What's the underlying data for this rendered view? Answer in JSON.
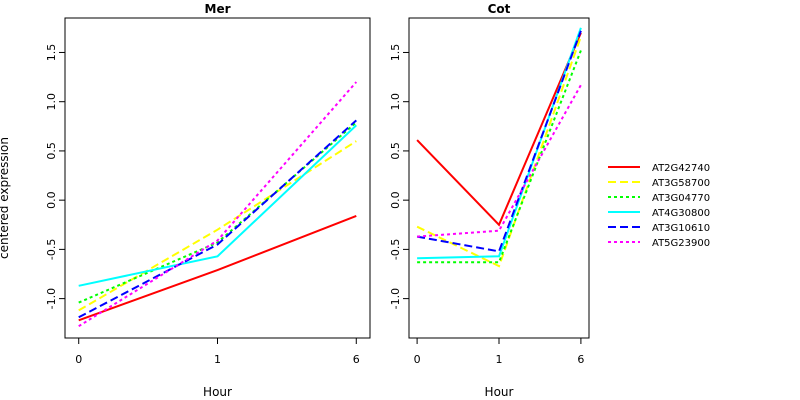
{
  "chart_data": {
    "type": "line",
    "ylabel": "centered expression",
    "series_styles": [
      {
        "name": "AT2G42740",
        "color": "#ff0000",
        "dash": "solid"
      },
      {
        "name": "AT3G58700",
        "color": "#ffff00",
        "dash": "dashed"
      },
      {
        "name": "AT3G04770",
        "color": "#00ff00",
        "dash": "dotted"
      },
      {
        "name": "AT4G30800",
        "color": "#00ffff",
        "dash": "solid"
      },
      {
        "name": "AT3G10610",
        "color": "#0000ff",
        "dash": "dashed"
      },
      {
        "name": "AT5G23900",
        "color": "#ff00ff",
        "dash": "dotted"
      }
    ],
    "legend_position": "right",
    "panels": [
      {
        "title": "Mer",
        "xlabel": "Hour",
        "x": [
          "0",
          "1",
          "6"
        ],
        "ylim": [
          -1.4,
          1.85
        ],
        "yticks": [
          -1.0,
          -0.5,
          0.0,
          0.5,
          1.0,
          1.5
        ],
        "series": [
          {
            "name": "AT2G42740",
            "values": [
              -1.22,
              -0.71,
              -0.16
            ]
          },
          {
            "name": "AT3G58700",
            "values": [
              -1.12,
              -0.3,
              0.6
            ]
          },
          {
            "name": "AT3G04770",
            "values": [
              -1.04,
              -0.43,
              0.79
            ]
          },
          {
            "name": "AT4G30800",
            "values": [
              -0.87,
              -0.57,
              0.76
            ]
          },
          {
            "name": "AT3G10610",
            "values": [
              -1.19,
              -0.45,
              0.81
            ]
          },
          {
            "name": "AT5G23900",
            "values": [
              -1.28,
              -0.41,
              1.2
            ]
          }
        ]
      },
      {
        "title": "Cot",
        "xlabel": "Hour",
        "x": [
          "0",
          "1",
          "6"
        ],
        "ylim": [
          -1.4,
          1.85
        ],
        "yticks": [
          -1.0,
          -0.5,
          0.0,
          0.5,
          1.0,
          1.5
        ],
        "series": [
          {
            "name": "AT2G42740",
            "values": [
              0.61,
              -0.25,
              1.7
            ]
          },
          {
            "name": "AT3G58700",
            "values": [
              -0.27,
              -0.67,
              1.66
            ]
          },
          {
            "name": "AT3G04770",
            "values": [
              -0.63,
              -0.63,
              1.52
            ]
          },
          {
            "name": "AT4G30800",
            "values": [
              -0.59,
              -0.57,
              1.75
            ]
          },
          {
            "name": "AT3G10610",
            "values": [
              -0.37,
              -0.52,
              1.72
            ]
          },
          {
            "name": "AT5G23900",
            "values": [
              -0.37,
              -0.31,
              1.17
            ]
          }
        ]
      }
    ]
  }
}
